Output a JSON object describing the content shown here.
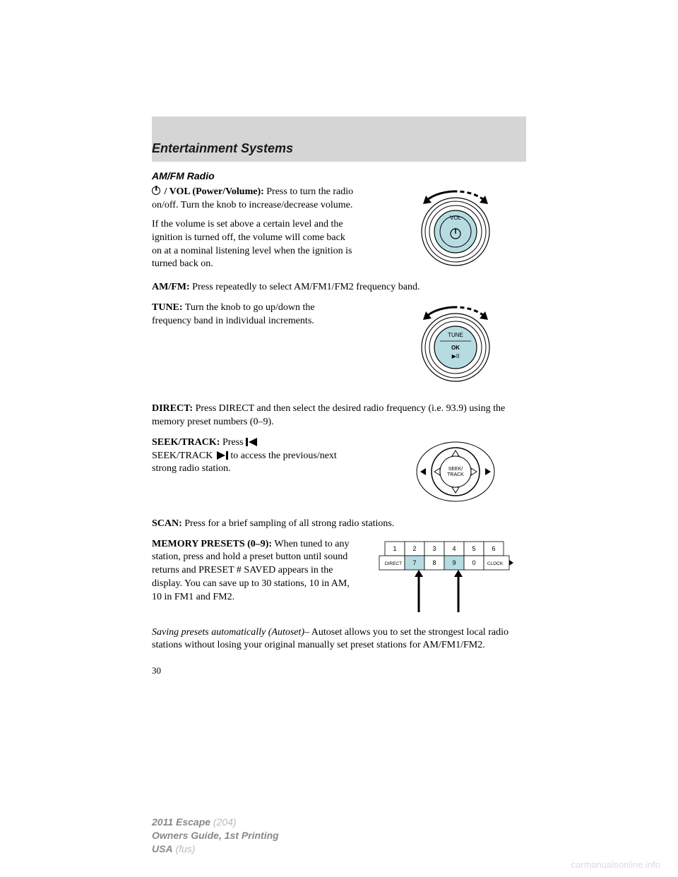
{
  "header": {
    "title": "Entertainment Systems"
  },
  "subheading": "AM/FM Radio",
  "power_vol": {
    "label": " / VOL (Power/Volume):",
    "text": " Press to turn the radio on/off. Turn the knob to increase/decrease volume."
  },
  "power_vol_note": "If the volume is set above a certain level and the ignition is turned off, the volume will come back on at a nominal listening level when the ignition is turned back on.",
  "amfm": {
    "label": "AM/FM:",
    "text": " Press repeatedly to select AM/FM1/FM2 frequency band."
  },
  "tune": {
    "label": "TUNE:",
    "text": " Turn the knob to go up/down the frequency band in individual increments."
  },
  "direct": {
    "label": "DIRECT:",
    "text": " Press DIRECT and then select the desired radio frequency (i.e. 93.9) using the memory preset numbers (0–9)."
  },
  "seek": {
    "label": "SEEK/TRACK:",
    "text1": " Press ",
    "text2": "SEEK/TRACK ",
    "text3": " to access the previous/next strong radio station."
  },
  "scan": {
    "label": "SCAN:",
    "text": " Press for a brief sampling of all strong radio stations."
  },
  "presets": {
    "label": "MEMORY PRESETS (0–9):",
    "text": " When tuned to any station, press and hold a preset button until sound returns and PRESET # SAVED appears in the display. You can save up to 30 stations, 10 in AM, 10 in FM1 and FM2."
  },
  "autoset": {
    "label": "Saving presets automatically (Autoset)",
    "text": "– Autoset allows you to set the strongest local radio stations without losing your original manually set preset stations for AM/FM1/FM2."
  },
  "page_number": "30",
  "footer": {
    "vehicle": "2011 Escape",
    "code": " (204)",
    "guide": "Owners Guide, 1st Printing",
    "region": "USA",
    "region_code": " (fus)"
  },
  "watermark": "carmanualsonline.info",
  "knob": {
    "vol_label": "VOL",
    "tune_label": "TUNE",
    "tune_ok": "OK",
    "face_color": "#b6dce2",
    "ring_color": "#000000",
    "bg": "#ffffff"
  },
  "seek_dial": {
    "label1": "SEEK/",
    "label2": "TRACK",
    "face_color": "#ffffff"
  },
  "preset_table": {
    "row1": [
      "1",
      "2",
      "3",
      "4",
      "5",
      "6"
    ],
    "row2_labels": [
      "DIRECT",
      "7",
      "8",
      "9",
      "0",
      "CLOCK"
    ],
    "highlight_color": "#b6dce2",
    "highlight_indices": [
      1,
      3
    ],
    "cell_bg": "#ffffff",
    "border": "#000000"
  }
}
